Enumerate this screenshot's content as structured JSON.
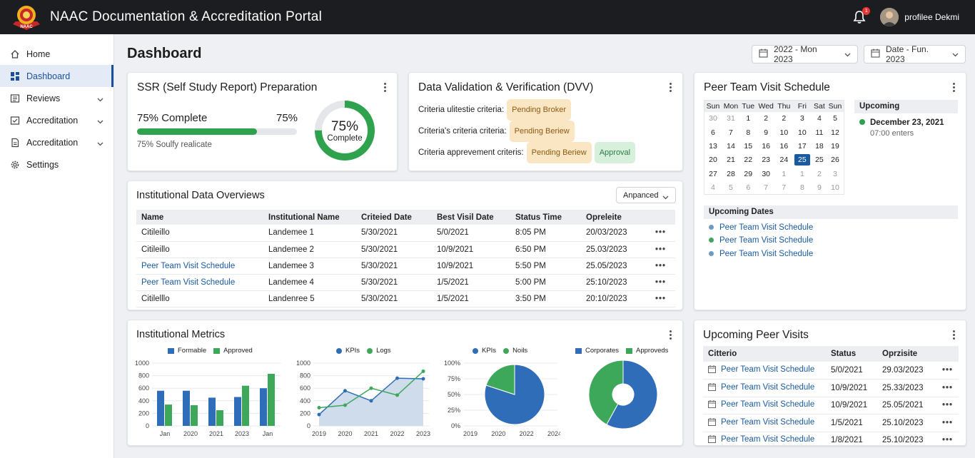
{
  "app": {
    "title": "NAAC Documentation & Accreditation Portal",
    "logo_text": "NAAC",
    "notification_count": "1",
    "profile_name": "profilee Dekmi"
  },
  "sidebar": {
    "items": [
      {
        "label": "Home",
        "icon": "home-icon"
      },
      {
        "label": "Dashboard",
        "icon": "dashboard-icon",
        "active": true
      },
      {
        "label": "Reviews",
        "icon": "reviews-icon",
        "chevron": true
      },
      {
        "label": "Accreditation",
        "icon": "checklist-icon",
        "chevron": true
      },
      {
        "label": "Accreditation",
        "icon": "document-icon",
        "chevron": true
      },
      {
        "label": "Settings",
        "icon": "gear-icon"
      }
    ]
  },
  "header": {
    "title": "Dashboard",
    "date_range_1": "2022 - Mon 2023",
    "date_range_2": "Date - Fun. 2023"
  },
  "ssr": {
    "title": "SSR (Self Study Report) Preparation",
    "progress_label": "75% Complete",
    "progress_value": "75%",
    "progress": 0.75,
    "sub": "75% Soulfy realicate",
    "ring_value": "75%",
    "ring_label": "Complete"
  },
  "dvv": {
    "title": "Data Validation & Verification (DVV)",
    "rows": [
      {
        "label": "Criteria ulitestie criteria:",
        "badges": [
          "Pending Broker"
        ]
      },
      {
        "label": "Criteria's criteria criteria:",
        "badges": [
          "Pending Beriew"
        ]
      },
      {
        "label": "Criteria apprevement criteris:",
        "badges": [
          "Pending Beriew",
          "Approval"
        ]
      }
    ]
  },
  "overview": {
    "title": "Institutional Data Overviews",
    "dropdown": "Anpanced",
    "columns": [
      "Name",
      "Institutional Name",
      "Criteied Date",
      "Best Visil Date",
      "Status Time",
      "Opreleite"
    ],
    "rows": [
      [
        "Citileillo",
        "Landemee 1",
        "5/30/2021",
        "5/0/2021",
        "8:05 PM",
        "20/03/2023"
      ],
      [
        "Citileillo",
        "Landemee 2",
        "5/30/2021",
        "10/9/2021",
        "6:50 PM",
        "25.03/2023"
      ],
      [
        "Peer Team Visit Schedule",
        "Landemee 3",
        "5/30/2021",
        "10/9/2021",
        "5:50 PM",
        "25.05/2023"
      ],
      [
        "Peer Team Visit Schedule",
        "Landemee 4",
        "5/30/2021",
        "1/5/2021",
        "5:00 PM",
        "25:10/2023"
      ],
      [
        "Citilelllo",
        "Landenree 5",
        "5/30/2021",
        "1/5/2021",
        "3:50 PM",
        "20:10/2023"
      ]
    ],
    "row_more": "•••"
  },
  "peer_schedule": {
    "title": "Peer Team Visit Schedule",
    "weekdays": [
      "Sun",
      "Mon",
      "Tue",
      "Wed",
      "Thu",
      "Fri",
      "Sat",
      "Sun"
    ],
    "weeks": [
      [
        "30",
        "31",
        "1",
        "2",
        "2",
        "3",
        "4",
        "5"
      ],
      [
        "6",
        "7",
        "8",
        "9",
        "10",
        "10",
        "11",
        "12"
      ],
      [
        "13",
        "14",
        "15",
        "16",
        "16",
        "17",
        "18",
        "19"
      ],
      [
        "20",
        "21",
        "22",
        "23",
        "24",
        "25",
        "25",
        "26"
      ],
      [
        "27",
        "28",
        "29",
        "30",
        "1",
        "1",
        "2",
        "3"
      ],
      [
        "4",
        "5",
        "6",
        "7",
        "7",
        "8",
        "9",
        "10"
      ]
    ],
    "upcoming_label": "Upcoming",
    "upcoming_date": "December 23, 2021",
    "upcoming_time": "07:00 enters",
    "upcoming_dates_label": "Upcoming Dates",
    "upcoming_dates": [
      "Peer Team Visit Schedule",
      "Peer Team Visit Schedule",
      "Peer Team Visit Schedule"
    ]
  },
  "metrics": {
    "title": "Institutional Metrics"
  },
  "chart_data": [
    {
      "type": "bar",
      "categories": [
        "Jan",
        "2020",
        "2021",
        "2023",
        "Jan"
      ],
      "series": [
        {
          "name": "Formable",
          "values": [
            560,
            560,
            450,
            460,
            600
          ]
        },
        {
          "name": "Approved",
          "values": [
            340,
            330,
            250,
            640,
            830
          ]
        }
      ],
      "ylim": [
        0,
        1000
      ],
      "yticks": [
        "0",
        "200",
        "400",
        "600",
        "800",
        "1000"
      ],
      "colors": [
        "#2f6db8",
        "#3ea85a"
      ]
    },
    {
      "type": "line",
      "x": [
        "2019",
        "2020",
        "2021",
        "2022",
        "2023"
      ],
      "series": [
        {
          "name": "KPIs",
          "values": [
            180,
            560,
            400,
            760,
            750
          ]
        },
        {
          "name": "Logs",
          "values": [
            290,
            330,
            600,
            490,
            870
          ]
        }
      ],
      "ylim": [
        0,
        1000
      ],
      "yticks": [
        "0",
        "200",
        "400",
        "600",
        "800",
        "1000"
      ],
      "colors": [
        "#2f6db8",
        "#3ea85a"
      ]
    },
    {
      "type": "pie",
      "series": [
        {
          "name": "KPIs",
          "values": [
            80
          ]
        },
        {
          "name": "Noils",
          "values": [
            20
          ]
        }
      ],
      "xticks": [
        "2019",
        "2020",
        "2022",
        "2024"
      ],
      "yticks": [
        "0%",
        "25%",
        "50%",
        "75%",
        "100%"
      ],
      "colors": [
        "#2f6db8",
        "#3ea85a"
      ]
    },
    {
      "type": "pie",
      "series": [
        {
          "name": "Corporates",
          "values": [
            58
          ]
        },
        {
          "name": "Approveds",
          "values": [
            42
          ]
        }
      ],
      "donut": true,
      "colors": [
        "#2f6db8",
        "#3ea85a"
      ]
    }
  ],
  "upcoming_visits": {
    "title": "Upcoming Peer Visits",
    "columns": [
      "Citterio",
      "Status",
      "Oprzisite"
    ],
    "rows": [
      [
        "Peer Team Visit Schedule",
        "5/0/2021",
        "29.03/2023"
      ],
      [
        "Peer Team Visit Schedule",
        "10/9/2021",
        "25.33/2023"
      ],
      [
        "Peer Team Visit Schedule",
        "10/9/2021",
        "25.05/2021"
      ],
      [
        "Peer Team Visit Schedule",
        "1/5/2021",
        "25.10/2023"
      ],
      [
        "Peer Team Visit Schedule",
        "1/8/2021",
        "25.10/2023"
      ]
    ]
  }
}
